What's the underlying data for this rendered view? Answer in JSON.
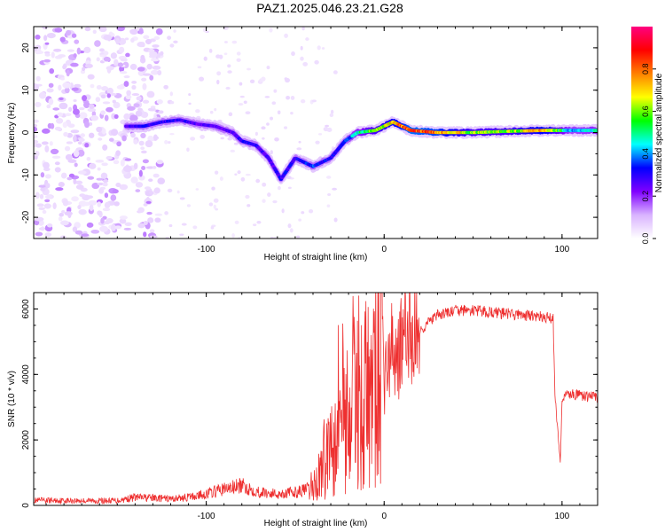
{
  "figure": {
    "title": "PAZ1.2025.046.23.21.G28"
  },
  "chart_data": [
    {
      "type": "heatmap",
      "xlabel": "Height of straight line (km)",
      "ylabel": "Frequency (Hz)",
      "xlim": [
        -197,
        120
      ],
      "ylim": [
        -25,
        25
      ],
      "xticks": [
        -100,
        0,
        100
      ],
      "yticks": [
        -20,
        -10,
        0,
        10,
        20
      ],
      "grid": false,
      "colormap": [
        "#ffffff",
        "#d9b3ff",
        "#8000ff",
        "#0000ff",
        "#00ffff",
        "#00ff00",
        "#ffff00",
        "#ff8000",
        "#ff0000",
        "#ff0080"
      ],
      "colorbar": {
        "label": "Normalized spectral amplitude",
        "range": [
          0,
          1
        ],
        "ticks": [
          0.0,
          0.2,
          0.4,
          0.6,
          0.8
        ]
      },
      "ridge": [
        {
          "x": -145,
          "f": 1.5,
          "a": 0.25
        },
        {
          "x": -135,
          "f": 1.5,
          "a": 0.3
        },
        {
          "x": -125,
          "f": 2.5,
          "a": 0.3
        },
        {
          "x": -115,
          "f": 3.0,
          "a": 0.3
        },
        {
          "x": -105,
          "f": 2.0,
          "a": 0.25
        },
        {
          "x": -95,
          "f": 1.5,
          "a": 0.25
        },
        {
          "x": -85,
          "f": 0.0,
          "a": 0.25
        },
        {
          "x": -80,
          "f": -2.0,
          "a": 0.3
        },
        {
          "x": -72,
          "f": -3.0,
          "a": 0.3
        },
        {
          "x": -65,
          "f": -6.0,
          "a": 0.25
        },
        {
          "x": -58,
          "f": -11.0,
          "a": 0.3
        },
        {
          "x": -50,
          "f": -6.0,
          "a": 0.3
        },
        {
          "x": -40,
          "f": -8.0,
          "a": 0.35
        },
        {
          "x": -30,
          "f": -6.0,
          "a": 0.3
        },
        {
          "x": -22,
          "f": -2.0,
          "a": 0.35
        },
        {
          "x": -15,
          "f": 0.0,
          "a": 0.45
        },
        {
          "x": -5,
          "f": 0.5,
          "a": 0.6
        },
        {
          "x": 5,
          "f": 2.5,
          "a": 0.7
        },
        {
          "x": 15,
          "f": 0.5,
          "a": 0.85
        },
        {
          "x": 30,
          "f": 0.0,
          "a": 0.8
        },
        {
          "x": 50,
          "f": 0.0,
          "a": 0.6
        },
        {
          "x": 70,
          "f": 0.3,
          "a": 0.6
        },
        {
          "x": 90,
          "f": 0.5,
          "a": 0.75
        },
        {
          "x": 105,
          "f": 0.5,
          "a": 0.4
        },
        {
          "x": 120,
          "f": 0.5,
          "a": 0.45
        }
      ]
    },
    {
      "type": "line",
      "xlabel": "Height of straight line (km)",
      "ylabel": "SNR (10 * v/v)",
      "xlim": [
        -197,
        120
      ],
      "ylim": [
        0,
        6500
      ],
      "xticks": [
        -100,
        0,
        100
      ],
      "yticks": [
        0,
        2000,
        4000,
        6000
      ],
      "grid": false,
      "color": "#ee3030",
      "series": [
        {
          "x": [
            -197,
            -180,
            -160,
            -150,
            -140,
            -120,
            -110,
            -100,
            -90,
            -80,
            -70,
            -60,
            -50,
            -42,
            -38,
            -35,
            -30,
            -28,
            -25,
            -22,
            -20,
            -18,
            -15,
            -12,
            -10,
            -8,
            -5,
            -3,
            0,
            5,
            10,
            15,
            20,
            25,
            30,
            40,
            50,
            60,
            70,
            80,
            90,
            95,
            96,
            97,
            98,
            99,
            100,
            102,
            105,
            110,
            120
          ],
          "y": [
            150,
            150,
            140,
            150,
            250,
            200,
            250,
            350,
            500,
            600,
            400,
            350,
            400,
            500,
            700,
            1200,
            2000,
            2800,
            3400,
            3000,
            2600,
            3300,
            3700,
            3000,
            3600,
            3100,
            3900,
            4300,
            4000,
            4700,
            4900,
            5400,
            5300,
            5600,
            5800,
            5950,
            5950,
            5900,
            5850,
            5800,
            5750,
            5700,
            3400,
            2700,
            2000,
            1300,
            3200,
            3400,
            3400,
            3350,
            3300
          ]
        }
      ]
    }
  ]
}
